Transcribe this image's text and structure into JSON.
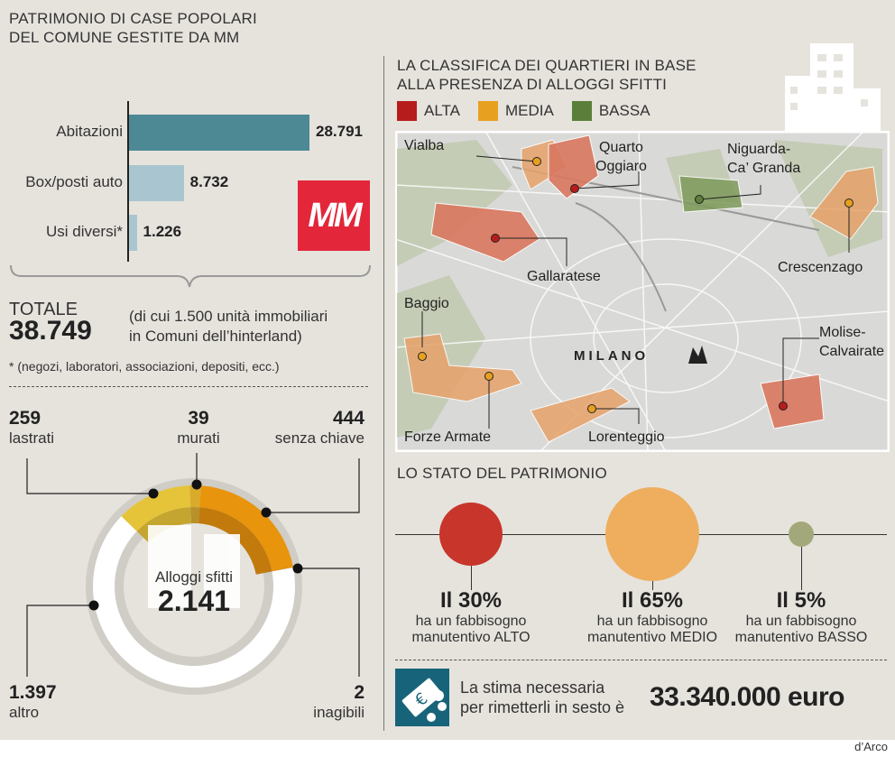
{
  "left": {
    "title_line1": "PATRIMONIO DI CASE POPOLARI",
    "title_line2": "DEL COMUNE GESTITE DA MM",
    "logo_text": "MM",
    "total_label": "TOTALE",
    "total_value": "38.749",
    "total_note_line1": "(di cui 1.500 unità immobiliari",
    "total_note_line2": "in Comuni dell’hinterland)",
    "footnote": "* (negozi, laboratori, associazioni, depositi, ecc.)"
  },
  "chart_data": [
    {
      "type": "bar",
      "orientation": "horizontal",
      "categories": [
        "Abitazioni",
        "Box/posti auto",
        "Usi diversi*"
      ],
      "values": [
        28791,
        8732,
        1226
      ],
      "value_labels": [
        "28.791",
        "8.732",
        "1.226"
      ],
      "colors": [
        "#4d8995",
        "#a9c6d0",
        "#a9c6d0"
      ]
    },
    {
      "type": "pie",
      "variant": "donut",
      "center_label": "Alloggi sfitti",
      "center_value": "2.141",
      "categories": [
        "lastrati",
        "murati",
        "senza chiave",
        "inagibili",
        "altro"
      ],
      "values": [
        259,
        39,
        444,
        2,
        1397
      ],
      "value_labels": [
        "259",
        "39",
        "444",
        "2",
        "1.397"
      ],
      "colors": [
        "#e6c43a",
        "#d9ab2b",
        "#e8940c",
        "#c98510",
        "#ffffff"
      ]
    },
    {
      "type": "scatter",
      "variant": "bubble",
      "title": "LO STATO DEL PATRIMONIO",
      "categories": [
        "ALTO",
        "MEDIO",
        "BASSO"
      ],
      "values": [
        30,
        65,
        5
      ],
      "value_labels": [
        "Il 30%",
        "Il 65%",
        "Il 5%"
      ],
      "desc_line1": "ha un fabbisogno",
      "desc_line2": [
        "manutentivo ALTO",
        "manutentivo MEDIO",
        "manutentivo BASSO"
      ],
      "colors": [
        "#c8352b",
        "#eeae5e",
        "#a3a87a"
      ]
    }
  ],
  "map": {
    "title_line1": "LA CLASSIFICA DEI QUARTIERI IN BASE",
    "title_line2": "ALLA PRESENZA DI ALLOGGI SFITTI",
    "legend": [
      {
        "label": "ALTA",
        "color": "#b71c1c"
      },
      {
        "label": "MEDIA",
        "color": "#e8a020"
      },
      {
        "label": "BASSA",
        "color": "#5b7f3a"
      }
    ],
    "city": "MILANO",
    "neighborhoods": [
      {
        "name": "Vialba",
        "level": "MEDIA"
      },
      {
        "name": "Quarto Oggiaro",
        "line1": "Quarto",
        "line2": "Oggiaro",
        "level": "ALTA"
      },
      {
        "name": "Niguarda-Ca’ Granda",
        "line1": "Niguarda-",
        "line2": "Ca’ Granda",
        "level": "BASSA"
      },
      {
        "name": "Gallaratese",
        "level": "ALTA"
      },
      {
        "name": "Crescenzago",
        "level": "MEDIA"
      },
      {
        "name": "Baggio",
        "level": "MEDIA"
      },
      {
        "name": "Molise-Calvairate",
        "line1": "Molise-",
        "line2": "Calvairate",
        "level": "ALTA"
      },
      {
        "name": "Forze Armate",
        "level": "MEDIA"
      },
      {
        "name": "Lorenteggio",
        "level": "MEDIA"
      }
    ]
  },
  "cost": {
    "line1": "La stima necessaria",
    "line2": "per rimetterli in sesto è",
    "value": "33.340.000 euro",
    "icon": "euro-banknote-icon"
  },
  "credit": "d’Arco"
}
